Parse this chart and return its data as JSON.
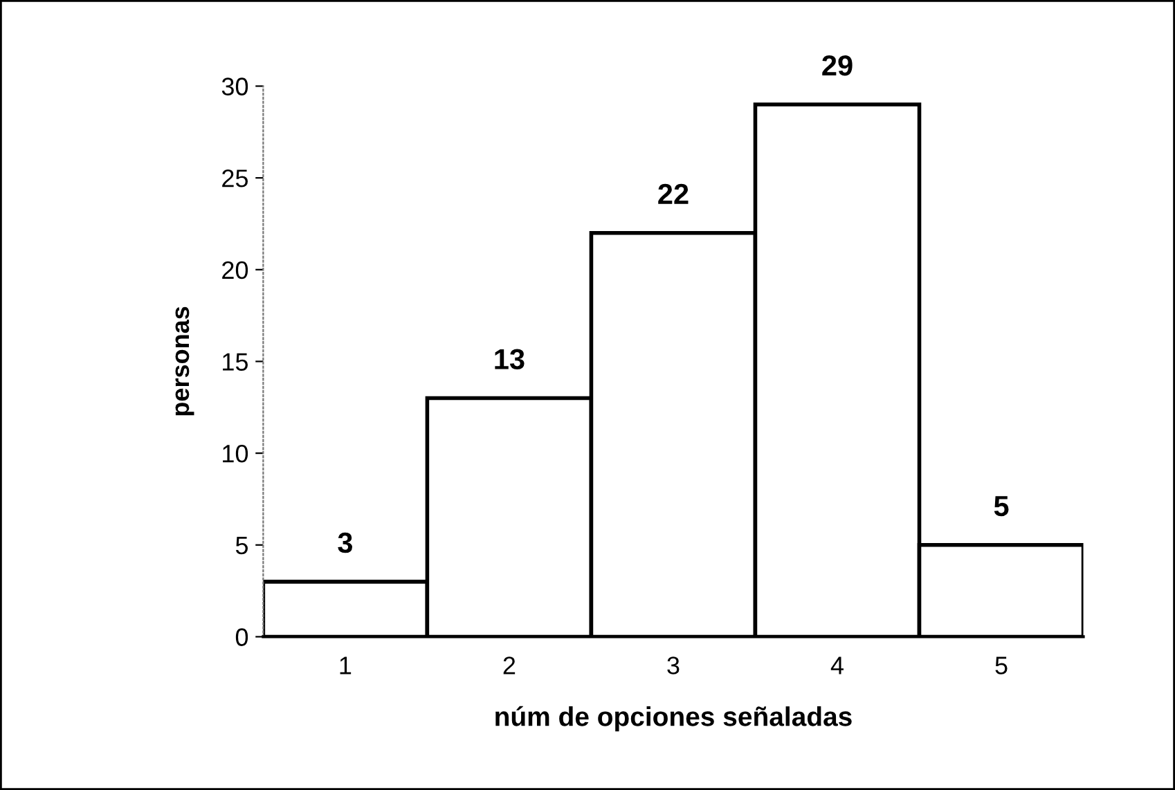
{
  "chart_data": {
    "type": "bar",
    "xlabel": "núm de opciones señaladas",
    "ylabel": "personas",
    "categories": [
      "1",
      "2",
      "3",
      "4",
      "5"
    ],
    "values": [
      3,
      13,
      22,
      29,
      5
    ],
    "color": "#ffffff",
    "ylim": [
      0,
      30
    ],
    "yticks": [
      0,
      5,
      10,
      15,
      20,
      25,
      30
    ],
    "data_labels": true,
    "grid": false,
    "legend": false
  }
}
